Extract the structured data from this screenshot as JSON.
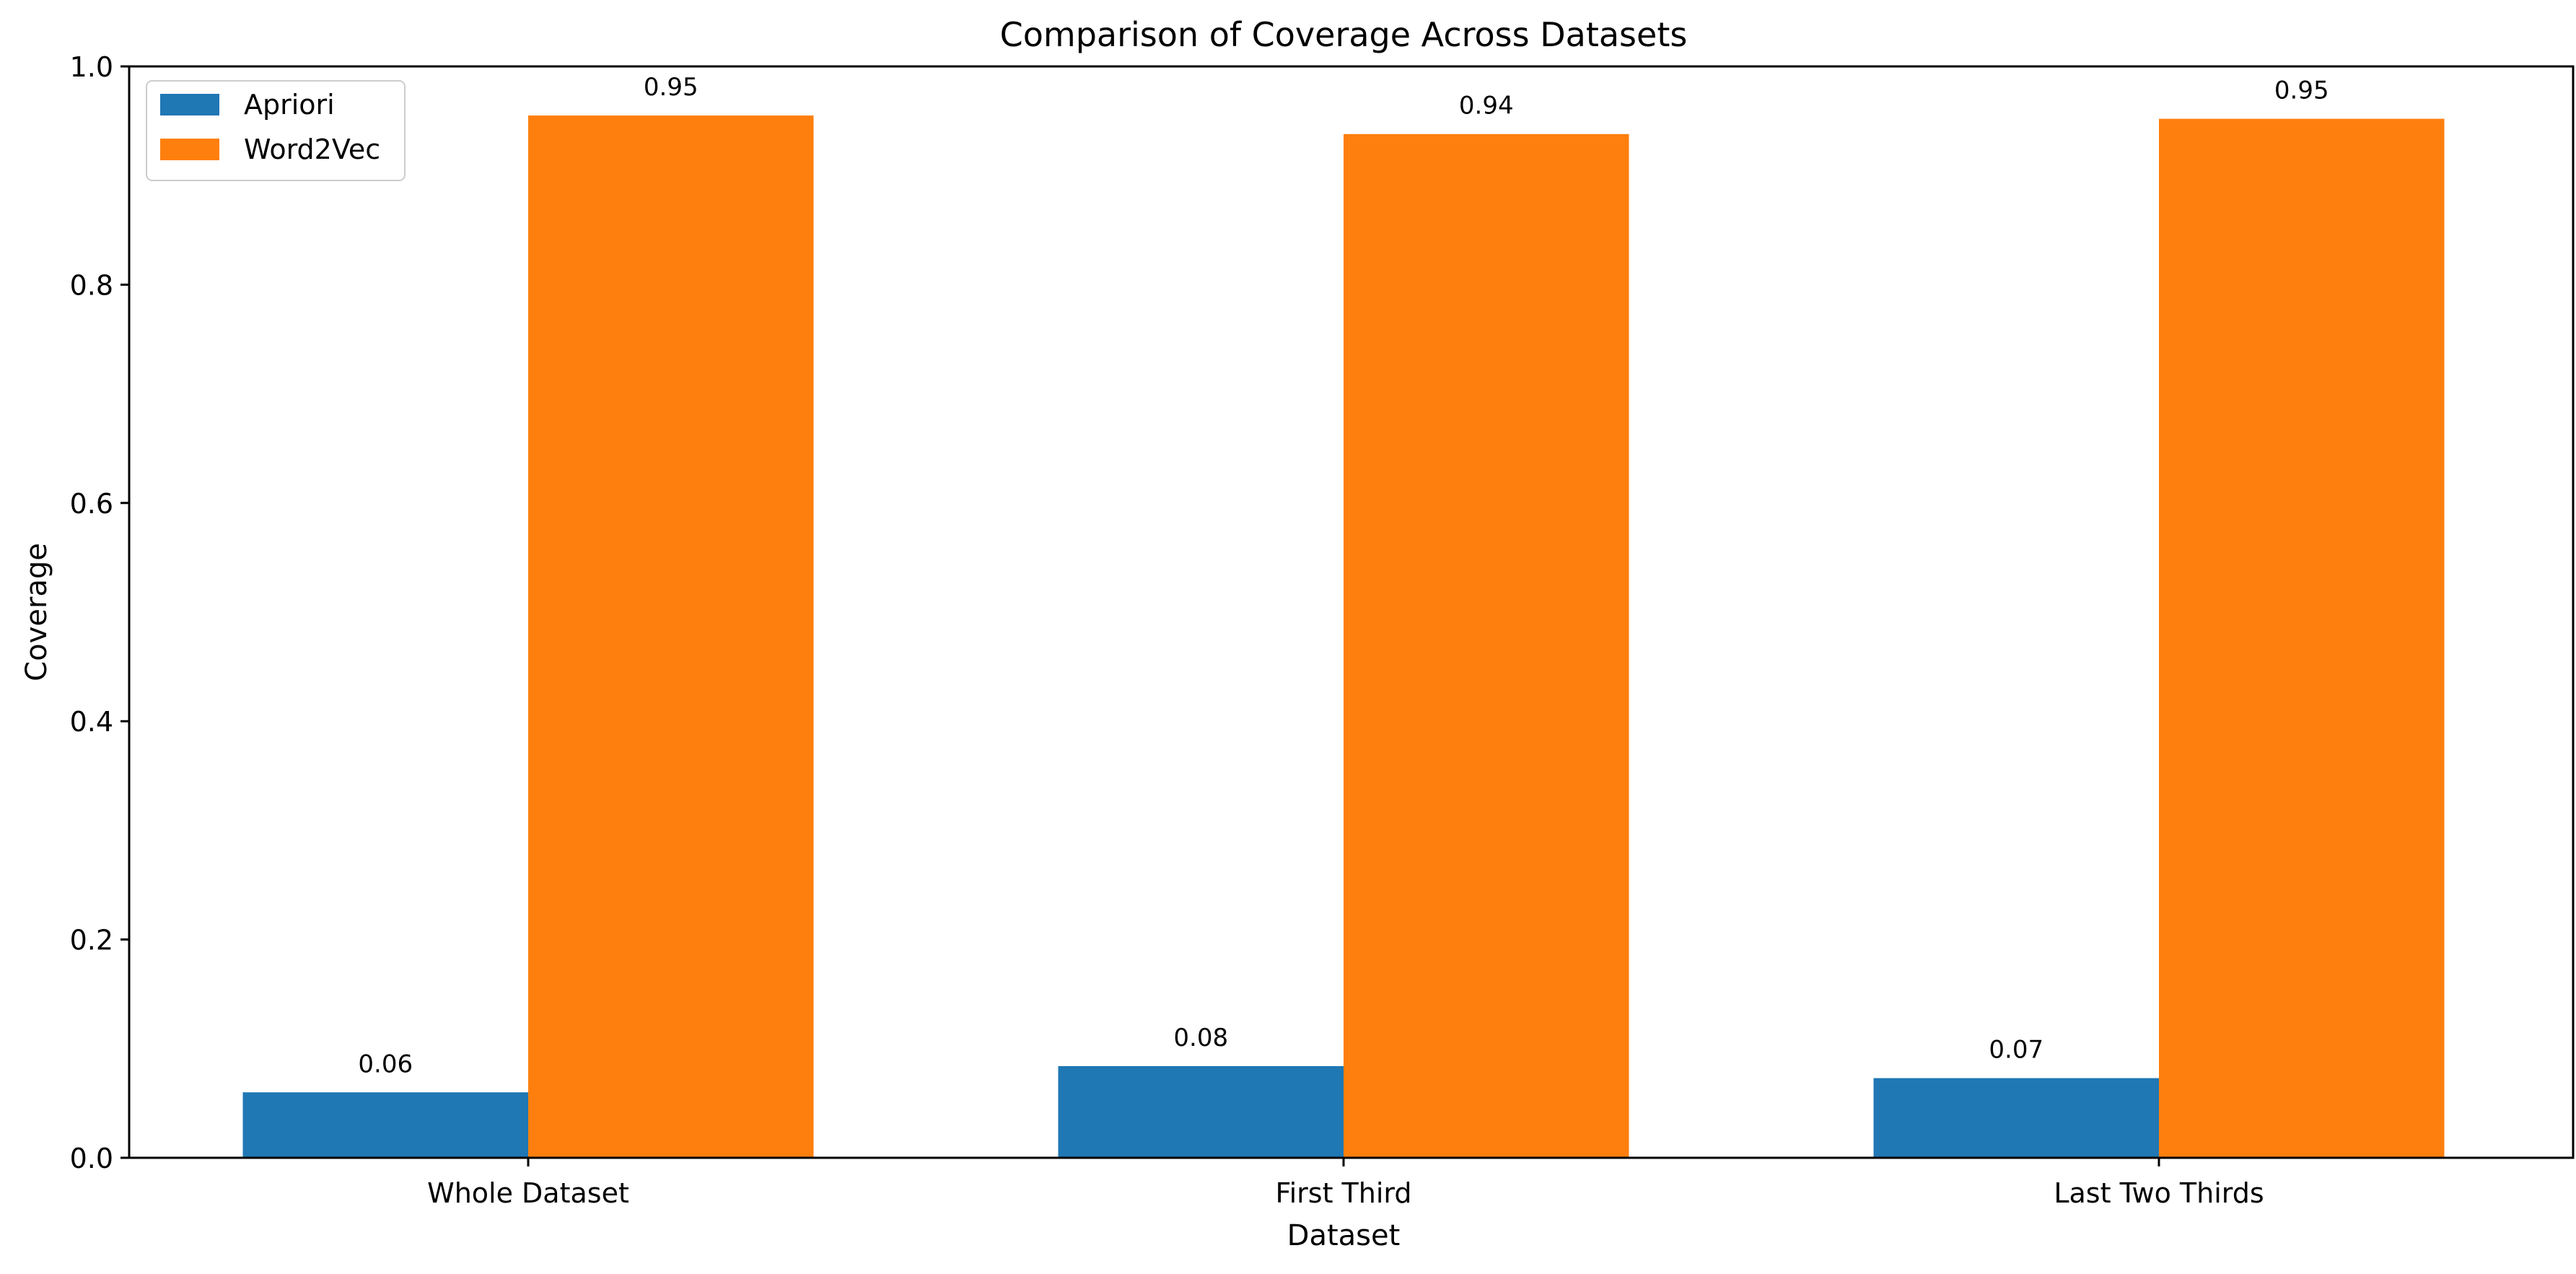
{
  "chart_data": {
    "type": "bar",
    "title": "Comparison of Coverage Across Datasets",
    "xlabel": "Dataset",
    "ylabel": "Coverage",
    "categories": [
      "Whole Dataset",
      "First Third",
      "Last Two Thirds"
    ],
    "series": [
      {
        "name": "Apriori",
        "color": "#1f77b4",
        "values": [
          0.06,
          0.084,
          0.073
        ],
        "labels": [
          "0.06",
          "0.08",
          "0.07"
        ]
      },
      {
        "name": "Word2Vec",
        "color": "#ff7f0e",
        "values": [
          0.955,
          0.938,
          0.952
        ],
        "labels": [
          "0.95",
          "0.94",
          "0.95"
        ]
      }
    ],
    "ylim": [
      0,
      1.0
    ],
    "yticks": [
      "0.0",
      "0.2",
      "0.4",
      "0.6",
      "0.8",
      "1.0"
    ],
    "grid": false,
    "legend_position": "top-left"
  }
}
